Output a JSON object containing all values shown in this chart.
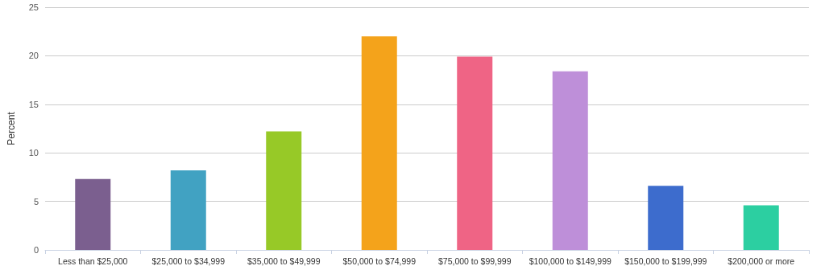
{
  "chart_data": {
    "type": "bar",
    "ylabel": "Percent",
    "categories": [
      "Less than $25,000",
      "$25,000 to $34,999",
      "$35,000 to $49,999",
      "$50,000 to $74,999",
      "$75,000 to $99,999",
      "$100,000 to $149,999",
      "$150,000 to $199,999",
      "$200,000 or more"
    ],
    "values": [
      7.3,
      8.2,
      12.2,
      22.0,
      19.9,
      18.4,
      6.6,
      4.6
    ],
    "colors": [
      "#7b5f8f",
      "#41a2c2",
      "#97c927",
      "#f4a31b",
      "#ef6485",
      "#be8fd9",
      "#3d6ccd",
      "#2ccfa1"
    ],
    "ylim": [
      0,
      25
    ],
    "yticks": [
      0,
      5,
      10,
      15,
      20,
      25
    ],
    "grid": "y"
  }
}
